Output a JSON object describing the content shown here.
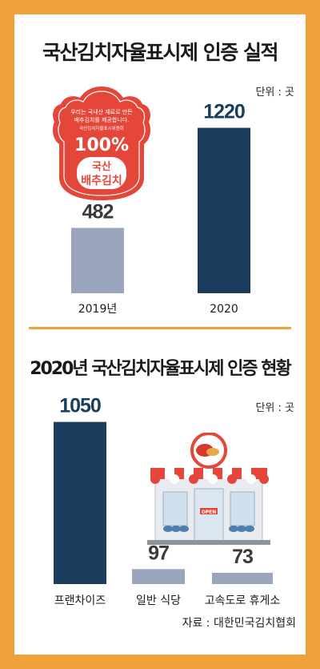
{
  "chart_data": [
    {
      "type": "bar",
      "title": "국산김치자율표시제 인증 실적",
      "unit_label": "단위 : 곳",
      "categories": [
        "2019년",
        "2020"
      ],
      "values": [
        482,
        1220
      ],
      "value_labels": [
        "482",
        "1220"
      ],
      "colors": [
        "#9aa6bd",
        "#1a3c5d"
      ],
      "ylim": [
        0,
        1300
      ]
    },
    {
      "type": "bar",
      "title": "2020년 국산김치자율표시제 인증 현황",
      "unit_label": "단위 : 곳",
      "categories": [
        "프랜차이즈",
        "일반 식당",
        "고속도로 휴게소"
      ],
      "values": [
        1050,
        97,
        73
      ],
      "value_labels": [
        "1050",
        "97",
        "73"
      ],
      "colors": [
        "#1a3c5d",
        "#9aa6bd",
        "#9aa6bd"
      ],
      "ylim": [
        0,
        1100
      ]
    }
  ],
  "badge": {
    "line1": "우리는 국내산 재료로 만든",
    "line2": "배추김치를 제공합니다.",
    "line3": "국산김치자율표시위원회",
    "percent": "100%",
    "name1": "국산",
    "name2": "배추김치"
  },
  "store": {
    "door_sign": "OPEN"
  },
  "source": "자료 : 대한민국김치협회",
  "colors": {
    "background": "#f0a23a",
    "dark_bar": "#1a3c5d",
    "light_bar": "#9aa6bd",
    "badge_red": "#e4473a"
  }
}
